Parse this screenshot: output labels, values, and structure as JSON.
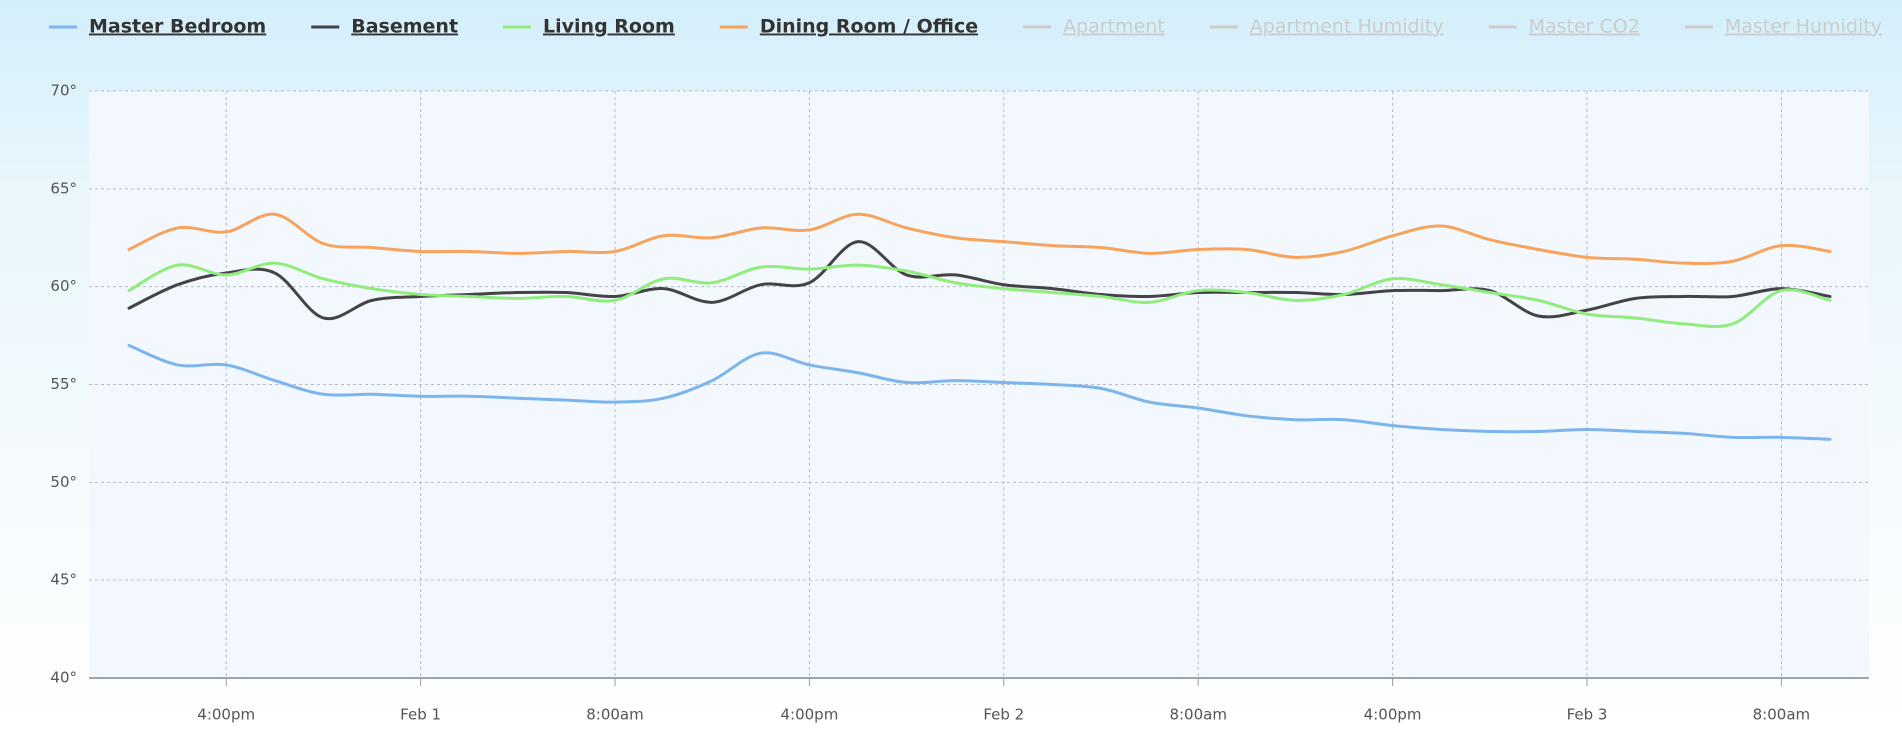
{
  "chart_data": {
    "type": "line",
    "categories": [
      null,
      null,
      "4:00pm",
      null,
      null,
      null,
      "Feb 1",
      null,
      null,
      null,
      "8:00am",
      null,
      null,
      null,
      "4:00pm",
      null,
      null,
      null,
      "Feb 2",
      null,
      null,
      null,
      "8:00am",
      null,
      null,
      null,
      "4:00pm",
      null,
      null,
      null,
      "Feb 3",
      null,
      null,
      null,
      "8:00am",
      null
    ],
    "series": [
      {
        "name": "Master Bedroom",
        "color": "#7cb5ec",
        "values": [
          57,
          56,
          56,
          55.2,
          54.5,
          54.5,
          54.4,
          54.4,
          54.3,
          54.2,
          54.1,
          54.3,
          55.2,
          56.6,
          56.0,
          55.6,
          55.1,
          55.2,
          55.1,
          55.0,
          54.8,
          54.1,
          53.8,
          53.4,
          53.2,
          53.2,
          52.9,
          52.7,
          52.6,
          52.6,
          52.7,
          52.6,
          52.5,
          52.3,
          52.3,
          52.2
        ]
      },
      {
        "name": "Basement",
        "color": "#434348",
        "values": [
          58.9,
          60.1,
          60.7,
          60.7,
          58.4,
          59.3,
          59.5,
          59.6,
          59.7,
          59.7,
          59.5,
          59.9,
          59.2,
          60.1,
          60.2,
          62.3,
          60.6,
          60.6,
          60.1,
          59.9,
          59.6,
          59.5,
          59.7,
          59.7,
          59.7,
          59.6,
          59.8,
          59.8,
          59.8,
          58.5,
          58.8,
          59.4,
          59.5,
          59.5,
          59.9,
          59.5
        ]
      },
      {
        "name": "Living Room",
        "color": "#90ed7d",
        "values": [
          59.8,
          61.1,
          60.6,
          61.2,
          60.4,
          59.9,
          59.6,
          59.5,
          59.4,
          59.5,
          59.3,
          60.4,
          60.2,
          61.0,
          60.9,
          61.1,
          60.8,
          60.2,
          59.9,
          59.7,
          59.5,
          59.2,
          59.8,
          59.7,
          59.3,
          59.6,
          60.4,
          60.1,
          59.7,
          59.3,
          58.6,
          58.4,
          58.1,
          58.1,
          59.8,
          59.3
        ]
      },
      {
        "name": "Dining Room / Office",
        "color": "#f7a35c",
        "values": [
          61.9,
          63.0,
          62.8,
          63.7,
          62.2,
          62.0,
          61.8,
          61.8,
          61.7,
          61.8,
          61.8,
          62.6,
          62.5,
          63.0,
          62.9,
          63.7,
          63.0,
          62.5,
          62.3,
          62.1,
          62.0,
          61.7,
          61.9,
          61.9,
          61.5,
          61.8,
          62.6,
          63.1,
          62.4,
          61.9,
          61.5,
          61.4,
          61.2,
          61.3,
          62.1,
          61.8
        ]
      }
    ],
    "legend_hidden": [
      "Apartment",
      "Apartment Humidity",
      "Master CO2",
      "Master Humidity"
    ],
    "ylim": [
      40,
      70
    ],
    "yticks": [
      {
        "value": 40,
        "label": "40°"
      },
      {
        "value": 45,
        "label": "45°"
      },
      {
        "value": 50,
        "label": "50°"
      },
      {
        "value": 55,
        "label": "55°"
      },
      {
        "value": 60,
        "label": "60°"
      },
      {
        "value": 65,
        "label": "65°"
      },
      {
        "value": 70,
        "label": "70°"
      }
    ],
    "grid": true
  }
}
